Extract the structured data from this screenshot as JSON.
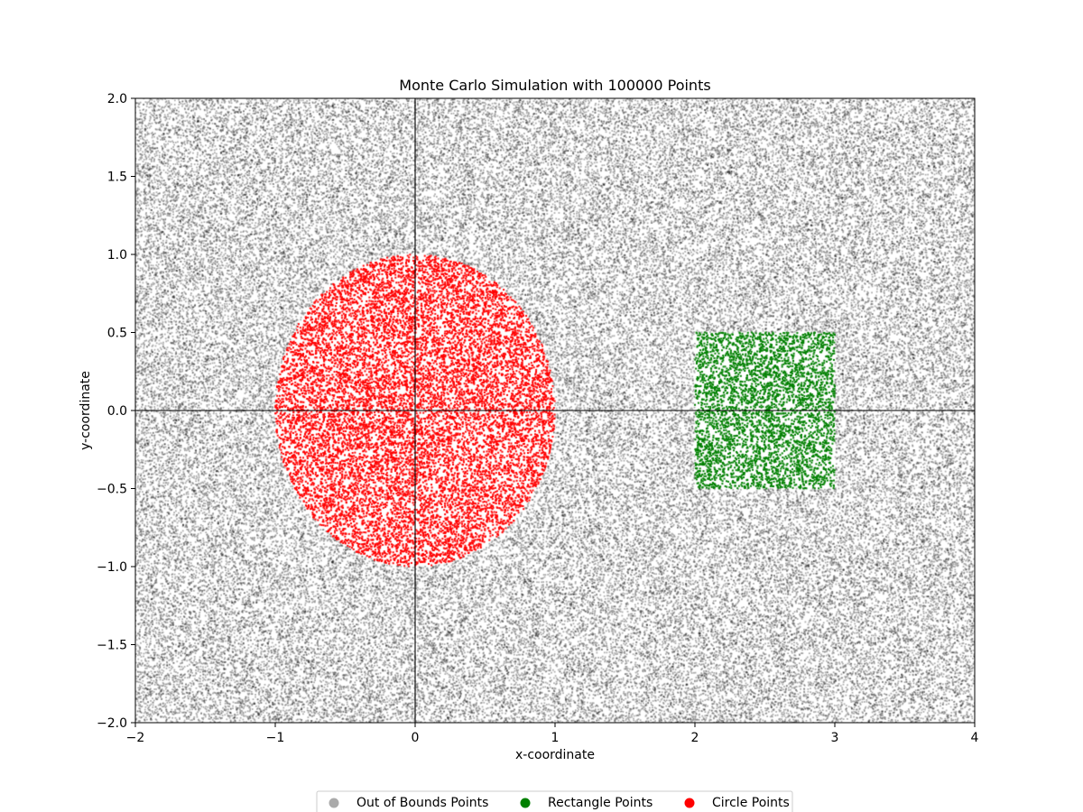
{
  "chart_data": {
    "type": "scatter",
    "title": "Monte Carlo Simulation with 100000 Points",
    "xlabel": "x-coordinate",
    "ylabel": "y-coordinate",
    "xlim": [
      -2,
      4
    ],
    "ylim": [
      -2,
      2
    ],
    "total_points": 100000,
    "xticks": [
      -2,
      -1,
      0,
      1,
      2,
      3,
      4
    ],
    "xtick_labels": [
      "−2",
      "−1",
      "0",
      "1",
      "2",
      "3",
      "4"
    ],
    "yticks": [
      -2.0,
      -1.5,
      -1.0,
      -0.5,
      0.0,
      0.5,
      1.0,
      1.5,
      2.0
    ],
    "ytick_labels": [
      "−2.0",
      "−1.5",
      "−1.0",
      "−0.5",
      "0.0",
      "0.5",
      "1.0",
      "1.5",
      "2.0"
    ],
    "reference_lines": {
      "x": 0,
      "y": 0
    },
    "regions": {
      "circle": {
        "center": [
          0,
          0
        ],
        "radius": 1
      },
      "rectangle": {
        "x": [
          2,
          3
        ],
        "y": [
          -0.5,
          0.5
        ]
      }
    },
    "series": [
      {
        "name": "Out of Bounds Points",
        "color": "#000000",
        "legend_color": "#aaaaaa",
        "region": "outside"
      },
      {
        "name": "Rectangle Points",
        "color": "#008000",
        "legend_color": "#008000",
        "region": "rectangle"
      },
      {
        "name": "Circle Points",
        "color": "#ff0000",
        "legend_color": "#ff0000",
        "region": "circle"
      }
    ],
    "legend_position": "bottom-center",
    "grid": false
  }
}
